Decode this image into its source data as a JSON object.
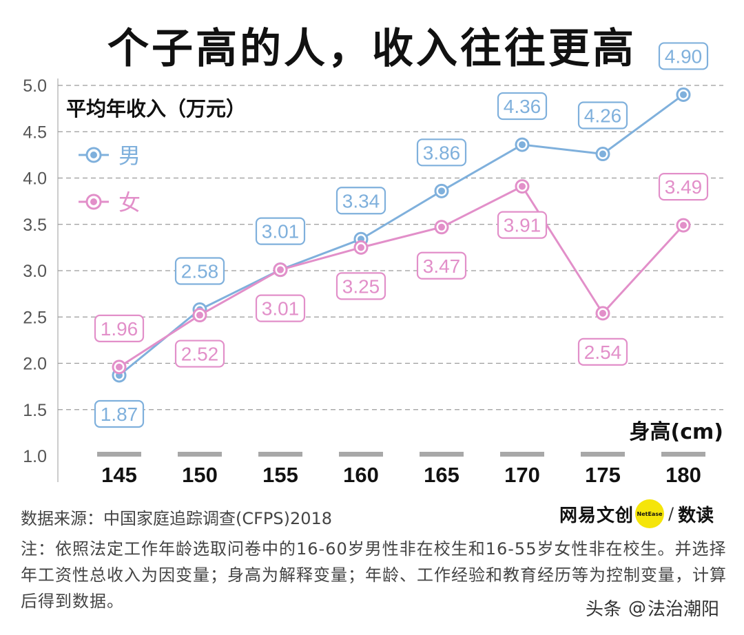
{
  "page_title": "个子高的人，收入往往更高",
  "chart_data": {
    "type": "line",
    "title": "个子高的人，收入往往更高",
    "ylabel": "平均年收入（万元）",
    "xlabel": "身高(cm)",
    "categories": [
      "145",
      "150",
      "155",
      "160",
      "165",
      "170",
      "175",
      "180"
    ],
    "ylim": [
      1.0,
      5.0
    ],
    "yticks": [
      "1.0",
      "1.5",
      "2.0",
      "2.5",
      "3.0",
      "3.5",
      "4.0",
      "4.5",
      "5.0"
    ],
    "grid": true,
    "legend_position": "top-left",
    "series": [
      {
        "name": "男",
        "color": "#7fb0dc",
        "values": [
          1.87,
          2.58,
          3.01,
          3.34,
          3.86,
          4.36,
          4.26,
          4.9
        ],
        "labels": [
          "1.87",
          "2.58",
          "3.01",
          "3.34",
          "3.86",
          "4.36",
          "4.26",
          "4.90"
        ],
        "label_side": [
          "below",
          "above",
          "above",
          "above",
          "above",
          "above",
          "above",
          "above"
        ]
      },
      {
        "name": "女",
        "color": "#e28fc9",
        "values": [
          1.96,
          2.52,
          3.01,
          3.25,
          3.47,
          3.91,
          2.54,
          3.49
        ],
        "labels": [
          "1.96",
          "2.52",
          "3.01",
          "3.25",
          "3.47",
          "3.91",
          "2.54",
          "3.49"
        ],
        "label_side": [
          "above",
          "below",
          "below",
          "below",
          "below",
          "below",
          "below",
          "above"
        ]
      }
    ]
  },
  "source_text": "数据来源：中国家庭追踪调查(CFPS)2018",
  "note_text": "注：依照法定工作年龄选取问卷中的16-60岁男性非在校生和16-55岁女性非在校生。并选择年工资性总收入为因变量；身高为解释变量；年龄、工作经验和教育经历等为控制变量，计算后得到数据。",
  "brand": {
    "name": "网易文创",
    "badge": "NetEase",
    "slash": "/",
    "sub": "数读"
  },
  "watermark": {
    "platform": "头条",
    "at": "@",
    "account": "法治潮阳"
  }
}
